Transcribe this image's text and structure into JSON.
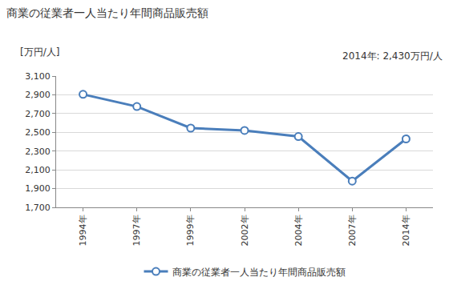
{
  "chart_data": {
    "type": "line",
    "title": "商業の従業者一人当たり年間商品販売額",
    "y_label": "[万円/人]",
    "annotations": [
      "2014年: 2,430万円/人"
    ],
    "categories": [
      "1994年",
      "1997年",
      "1999年",
      "2002年",
      "2004年",
      "2007年",
      "2014年"
    ],
    "series": [
      {
        "name": "商業の従業者一人当たり年間商品販売額",
        "color": "#4a7ebb",
        "marker": "circle",
        "values": [
          2905,
          2775,
          2545,
          2520,
          2455,
          1980,
          2430
        ]
      }
    ],
    "ylim": [
      1700,
      3100
    ],
    "yticks": [
      {
        "value": 1700,
        "label": "1,700"
      },
      {
        "value": 1900,
        "label": "1,900"
      },
      {
        "value": 2100,
        "label": "2,100"
      },
      {
        "value": 2300,
        "label": "2,300"
      },
      {
        "value": 2500,
        "label": "2,500"
      },
      {
        "value": 2700,
        "label": "2,700"
      },
      {
        "value": 2900,
        "label": "2,900"
      },
      {
        "value": 3100,
        "label": "3,100"
      }
    ],
    "grid": true,
    "legend": "bottom"
  }
}
